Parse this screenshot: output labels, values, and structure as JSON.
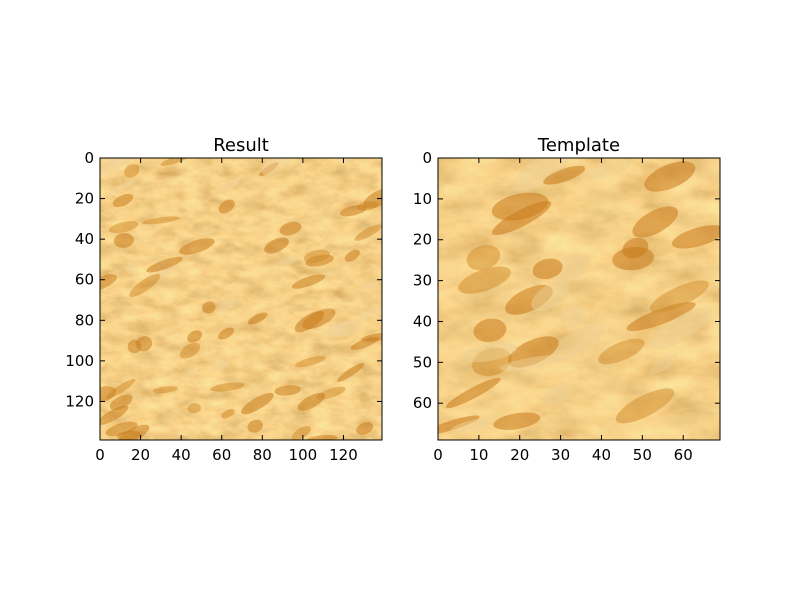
{
  "chart_data": [
    {
      "type": "heatmap",
      "title": "Result",
      "xlabel": "",
      "ylabel": "",
      "xlim": [
        0,
        139
      ],
      "ylim": [
        139,
        0
      ],
      "xticks": [
        0,
        20,
        40,
        60,
        80,
        100,
        120
      ],
      "yticks": [
        0,
        20,
        40,
        60,
        80,
        100,
        120
      ],
      "content": "cork-like orange/tan texture image",
      "colors": {
        "base": "#e3ac58",
        "light": "#f1d49c",
        "dark": "#c97d1f",
        "accent": "#cf8a28"
      }
    },
    {
      "type": "heatmap",
      "title": "Template",
      "xlabel": "",
      "ylabel": "",
      "xlim": [
        0,
        69
      ],
      "ylim": [
        69,
        0
      ],
      "xticks": [
        0,
        10,
        20,
        30,
        40,
        50,
        60
      ],
      "yticks": [
        0,
        10,
        20,
        30,
        40,
        50,
        60
      ],
      "content": "cork-like orange/tan texture image (zoomed patch)",
      "colors": {
        "base": "#e0aa56",
        "light": "#eecf94",
        "dark": "#c87a1c",
        "accent": "#cf8b2c"
      }
    }
  ]
}
